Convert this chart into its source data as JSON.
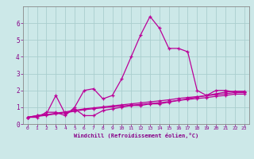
{
  "xlabel": "Windchill (Refroidissement éolien,°C)",
  "bg_color": "#cce8e8",
  "grid_color": "#aacece",
  "line_color": "#bb0099",
  "spine_color": "#888888",
  "tick_color": "#880088",
  "x_values": [
    0,
    1,
    2,
    3,
    4,
    5,
    6,
    7,
    8,
    9,
    10,
    11,
    12,
    13,
    14,
    15,
    16,
    17,
    18,
    19,
    20,
    21,
    22,
    23
  ],
  "series": [
    [
      0.4,
      0.4,
      0.7,
      0.7,
      0.5,
      1.0,
      2.0,
      2.1,
      1.5,
      1.7,
      2.7,
      4.0,
      5.3,
      6.4,
      5.7,
      4.5,
      4.5,
      4.3,
      2.0,
      1.7,
      2.0,
      2.0,
      1.9,
      1.9
    ],
    [
      0.4,
      0.5,
      0.6,
      1.7,
      0.6,
      0.9,
      0.5,
      0.5,
      0.8,
      0.9,
      1.0,
      1.1,
      1.1,
      1.2,
      1.2,
      1.3,
      1.4,
      1.5,
      1.6,
      1.7,
      1.8,
      1.9,
      1.95,
      1.95
    ],
    [
      0.4,
      0.5,
      0.55,
      0.65,
      0.72,
      0.82,
      0.9,
      0.96,
      1.02,
      1.08,
      1.14,
      1.2,
      1.26,
      1.32,
      1.38,
      1.44,
      1.52,
      1.58,
      1.63,
      1.68,
      1.75,
      1.8,
      1.87,
      1.87
    ],
    [
      0.4,
      0.45,
      0.52,
      0.6,
      0.67,
      0.76,
      0.85,
      0.91,
      0.97,
      1.02,
      1.07,
      1.12,
      1.17,
      1.22,
      1.27,
      1.33,
      1.41,
      1.46,
      1.52,
      1.57,
      1.65,
      1.7,
      1.78,
      1.78
    ]
  ],
  "ylim": [
    0,
    7
  ],
  "xlim": [
    -0.5,
    23.5
  ],
  "yticks": [
    0,
    1,
    2,
    3,
    4,
    5,
    6
  ],
  "xticks": [
    0,
    1,
    2,
    3,
    4,
    5,
    6,
    7,
    8,
    9,
    10,
    11,
    12,
    13,
    14,
    15,
    16,
    17,
    18,
    19,
    20,
    21,
    22,
    23
  ]
}
